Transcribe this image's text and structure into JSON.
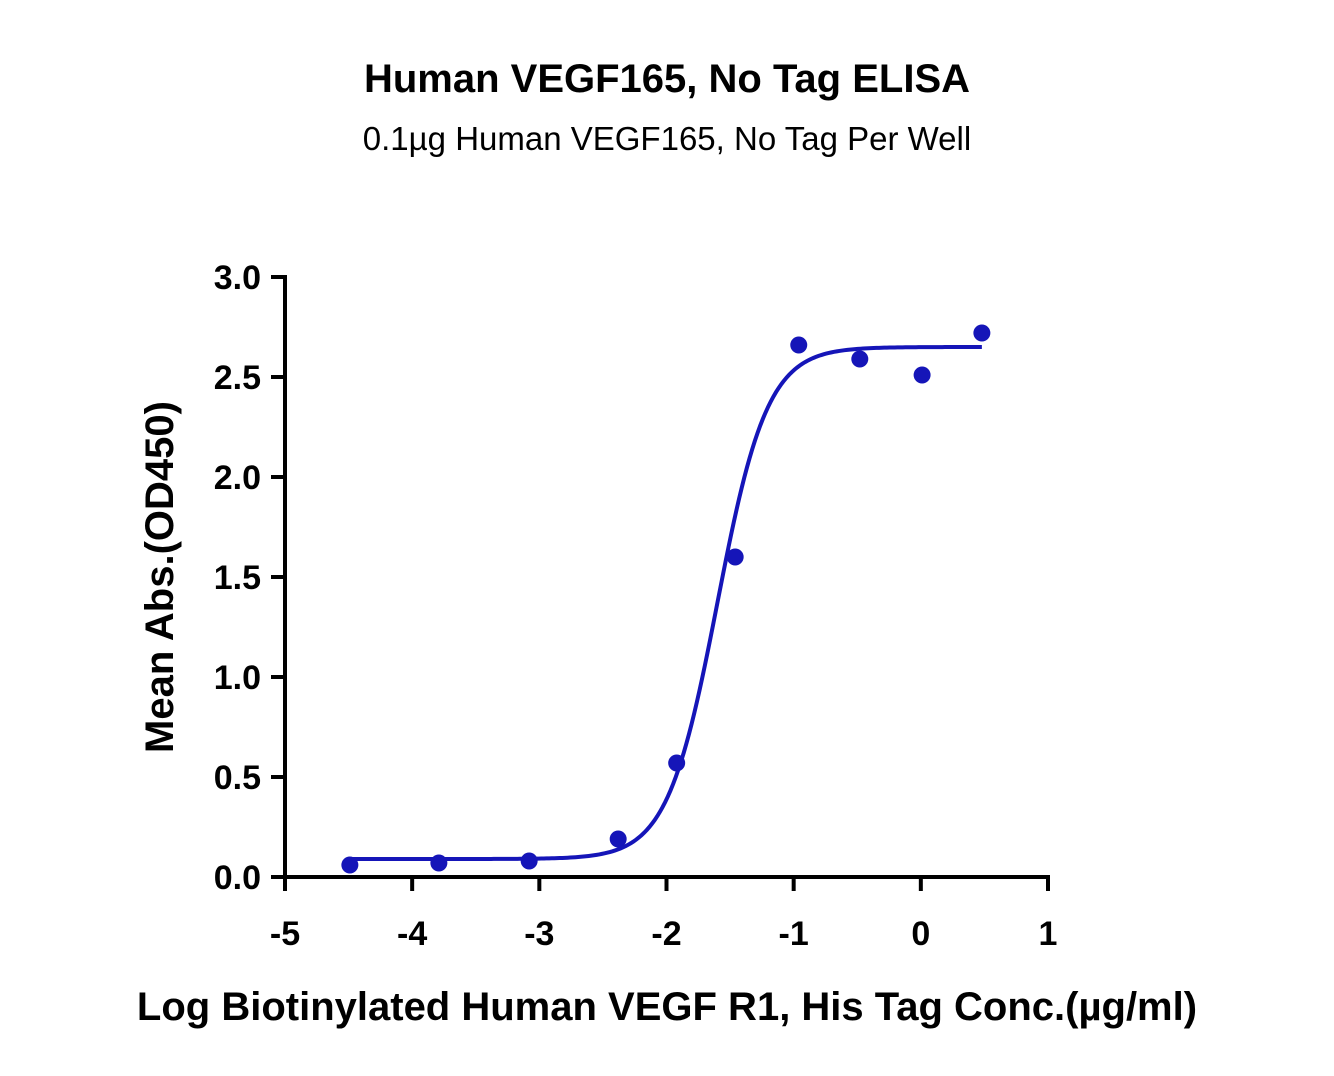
{
  "title": "Human VEGF165, No Tag ELISA",
  "subtitle": "0.1µg Human VEGF165, No Tag Per Well",
  "colors": {
    "series": "#1515b8",
    "axis": "#000000"
  },
  "chart_data": {
    "type": "scatter",
    "title": "Human VEGF165, No Tag ELISA",
    "subtitle": "0.1µg Human VEGF165, No Tag Per Well",
    "xlabel": "Log Biotinylated Human VEGF R1, His Tag Conc.(µg/ml)",
    "ylabel": "Mean Abs.(OD450)",
    "xlim": [
      -5,
      1
    ],
    "ylim": [
      0,
      3.0
    ],
    "x_ticks": [
      -5,
      -4,
      -3,
      -2,
      -1,
      0,
      1
    ],
    "x_tick_labels": [
      "-5",
      "-4",
      "-3",
      "-2",
      "-1",
      "0",
      "1"
    ],
    "y_ticks": [
      0,
      0.5,
      1.0,
      1.5,
      2.0,
      2.5,
      3.0
    ],
    "y_tick_labels": [
      "0.0",
      "0.5",
      "1.0",
      "1.5",
      "2.0",
      "2.5",
      "3.0"
    ],
    "grid": false,
    "legend": "none",
    "series": [
      {
        "points": [
          {
            "x": -4.49,
            "y": 0.06
          },
          {
            "x": -3.79,
            "y": 0.07
          },
          {
            "x": -3.08,
            "y": 0.08
          },
          {
            "x": -2.38,
            "y": 0.19
          },
          {
            "x": -1.92,
            "y": 0.57
          },
          {
            "x": -1.46,
            "y": 1.6
          },
          {
            "x": -0.96,
            "y": 2.66
          },
          {
            "x": -0.48,
            "y": 2.59
          },
          {
            "x": 0.01,
            "y": 2.51
          },
          {
            "x": 0.48,
            "y": 2.72
          }
        ],
        "fit": {
          "model": "4PL",
          "bottom": 0.09,
          "top": 2.65,
          "logEC50": -1.6,
          "hill": 2.2,
          "x_range": [
            -4.5,
            0.48
          ]
        }
      }
    ]
  }
}
